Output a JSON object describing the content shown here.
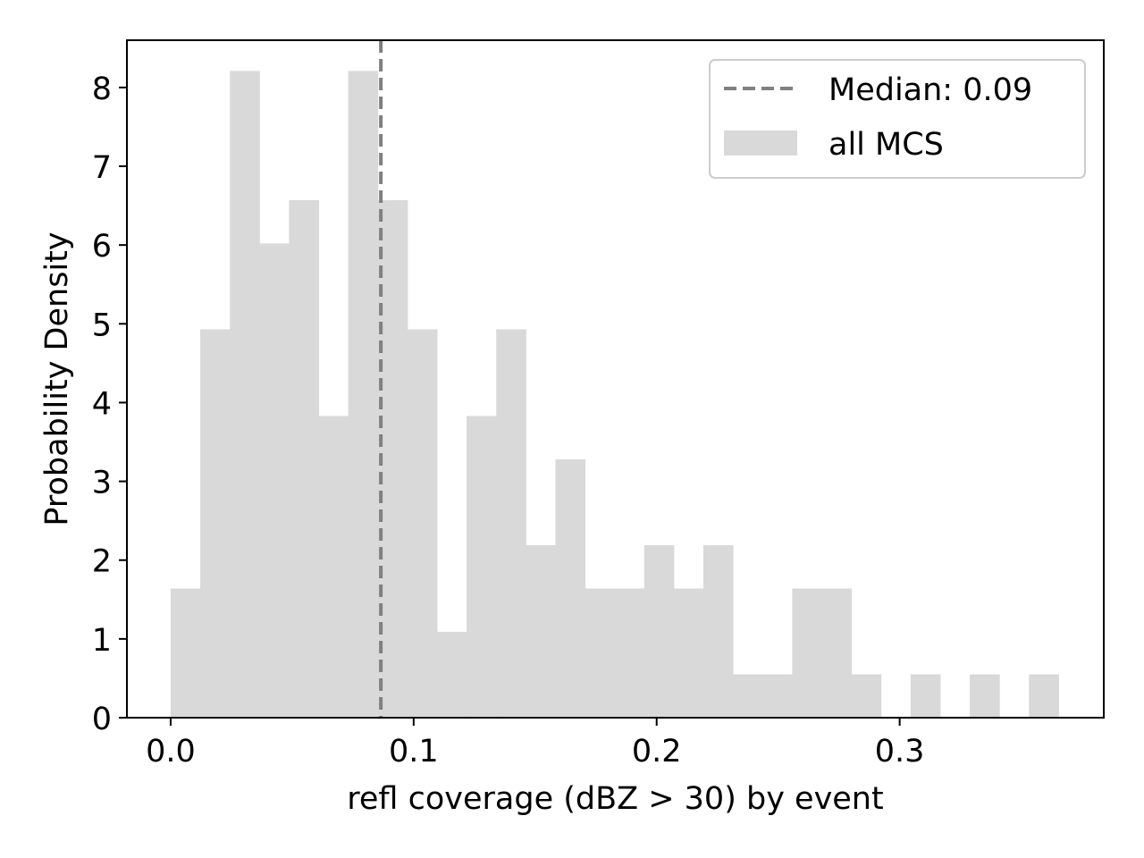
{
  "chart_data": {
    "type": "histogram",
    "xlabel": "refl coverage (dBZ > 30) by event",
    "ylabel": "Probability Density",
    "xlim": [
      -0.018,
      0.384
    ],
    "ylim": [
      0,
      8.6
    ],
    "xticks": [
      0.0,
      0.1,
      0.2,
      0.3
    ],
    "xtick_labels": [
      "0.0",
      "0.1",
      "0.2",
      "0.3"
    ],
    "yticks": [
      0,
      1,
      2,
      3,
      4,
      5,
      6,
      7,
      8
    ],
    "ytick_labels": [
      "0",
      "1",
      "2",
      "3",
      "4",
      "5",
      "6",
      "7",
      "8"
    ],
    "bin_start": 0.0,
    "bin_width": 0.01218,
    "series": [
      {
        "name": "all MCS",
        "color": "#d9d9d9",
        "values": [
          1.64,
          4.93,
          8.21,
          6.02,
          6.57,
          3.83,
          8.21,
          6.57,
          4.93,
          1.09,
          3.83,
          4.93,
          2.19,
          3.28,
          1.64,
          1.64,
          2.19,
          1.64,
          2.19,
          0.55,
          0.55,
          1.64,
          1.64,
          0.55,
          0.0,
          0.55,
          0.0,
          0.55,
          0.0,
          0.55
        ]
      }
    ],
    "median": {
      "label": "Median: 0.09",
      "value": 0.0865,
      "color": "#808080",
      "style": "dashed"
    },
    "legend": {
      "placement": "top-right",
      "items": [
        {
          "label": "Median: 0.09",
          "kind": "dashed-line",
          "color": "#808080"
        },
        {
          "label": "all MCS",
          "kind": "patch",
          "color": "#d9d9d9"
        }
      ]
    },
    "grid": false
  }
}
